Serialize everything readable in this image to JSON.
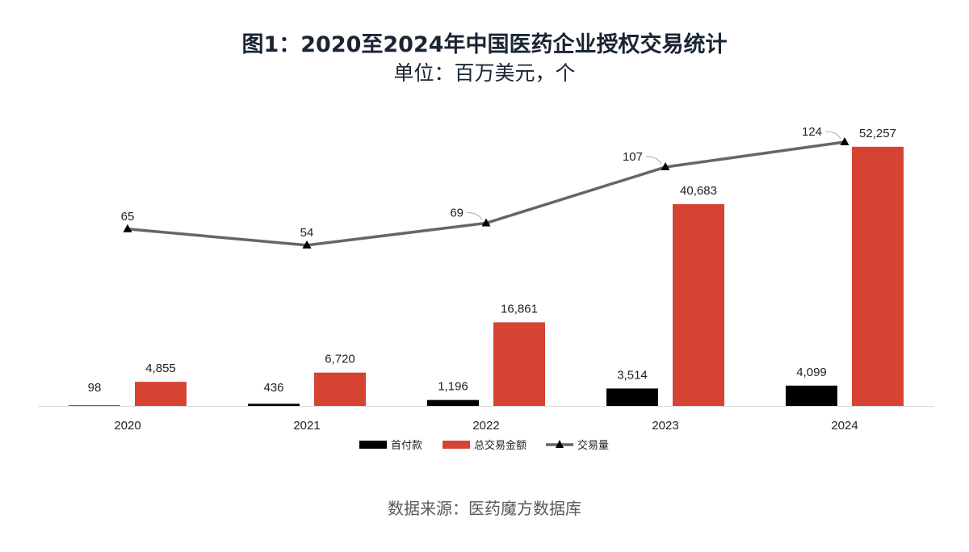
{
  "title": "图1：2020至2024年中国医药企业授权交易统计",
  "subtitle": "单位：百万美元，个",
  "source": "数据来源：医药魔方数据库",
  "colors": {
    "upfront": "#000000",
    "total": "#d64333",
    "count": "#666666"
  },
  "chart_data": {
    "type": "bar",
    "categories": [
      "2020",
      "2021",
      "2022",
      "2023",
      "2024"
    ],
    "series": [
      {
        "name": "首付款",
        "type": "bar",
        "values": [
          98,
          436,
          1196,
          3514,
          4099
        ],
        "labels": [
          "98",
          "436",
          "1,196",
          "3,514",
          "4,099"
        ]
      },
      {
        "name": "总交易金额",
        "type": "bar",
        "values": [
          4855,
          6720,
          16861,
          40683,
          52257
        ],
        "labels": [
          "4,855",
          "6,720",
          "16,861",
          "40,683",
          "52,257"
        ]
      },
      {
        "name": "交易量",
        "type": "line",
        "marker": "triangle",
        "values": [
          65,
          54,
          69,
          107,
          124
        ],
        "labels": [
          "65",
          "54",
          "69",
          "107",
          "124"
        ]
      }
    ],
    "bar_ylim": [
      0,
      55000
    ],
    "line_ylim": [
      -55,
      130
    ],
    "legend_position": "bottom",
    "grid": false
  }
}
